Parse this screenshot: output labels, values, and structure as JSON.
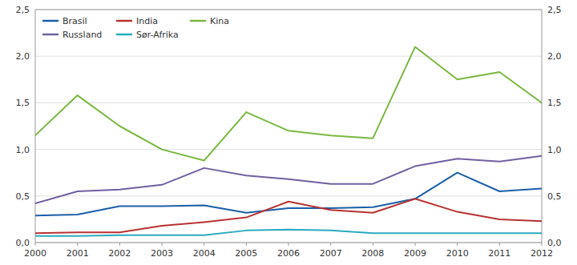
{
  "chart_data": {
    "type": "line",
    "x": [
      2000,
      2001,
      2002,
      2003,
      2004,
      2005,
      2006,
      2007,
      2008,
      2009,
      2010,
      2011,
      2012
    ],
    "series": [
      {
        "name": "Brasil",
        "color": "#1a5fa8",
        "values": [
          0.29,
          0.3,
          0.39,
          0.39,
          0.4,
          0.32,
          0.37,
          0.37,
          0.38,
          0.47,
          0.75,
          0.55,
          0.58
        ]
      },
      {
        "name": "India",
        "color": "#b83232",
        "values": [
          0.1,
          0.11,
          0.11,
          0.18,
          0.22,
          0.27,
          0.44,
          0.35,
          0.32,
          0.47,
          0.33,
          0.25,
          0.23
        ]
      },
      {
        "name": "Kina",
        "color": "#7ab840",
        "values": [
          1.15,
          1.58,
          1.25,
          1.0,
          0.88,
          1.4,
          1.2,
          1.15,
          1.12,
          2.1,
          1.75,
          1.83,
          1.5
        ]
      },
      {
        "name": "Russland",
        "color": "#7060a0",
        "values": [
          0.42,
          0.55,
          0.57,
          0.62,
          0.8,
          0.72,
          0.68,
          0.63,
          0.63,
          0.82,
          0.9,
          0.87,
          0.93
        ]
      },
      {
        "name": "Sør-Afrika",
        "color": "#2aaabf",
        "values": [
          0.07,
          0.07,
          0.08,
          0.08,
          0.08,
          0.13,
          0.14,
          0.13,
          0.1,
          0.1,
          0.1,
          0.1,
          0.1
        ]
      }
    ],
    "xlim": [
      2000,
      2012
    ],
    "xticks": [
      2000,
      2001,
      2002,
      2003,
      2004,
      2005,
      2006,
      2007,
      2008,
      2009,
      2010,
      2011,
      2012
    ],
    "ylim": [
      0.0,
      2.5
    ],
    "yticks": [
      {
        "value": 0.0,
        "label": "0,0"
      },
      {
        "value": 0.5,
        "label": "0,5"
      },
      {
        "value": 1.0,
        "label": "1,0"
      },
      {
        "value": 1.5,
        "label": "1,5"
      },
      {
        "value": 2.0,
        "label": "2,0"
      },
      {
        "value": 2.5,
        "label": "2,5"
      }
    ],
    "y2lim": [
      0.0,
      2.5
    ],
    "y2ticks": [
      {
        "value": 0.0,
        "label": "0,0"
      },
      {
        "value": 0.5,
        "label": "0,5"
      },
      {
        "value": 1.0,
        "label": "1,0"
      },
      {
        "value": 1.5,
        "label": "1,5"
      },
      {
        "value": 2.0,
        "label": "2,0"
      },
      {
        "value": 2.5,
        "label": "2,5"
      }
    ],
    "grid": true,
    "legend": "upper-left"
  }
}
